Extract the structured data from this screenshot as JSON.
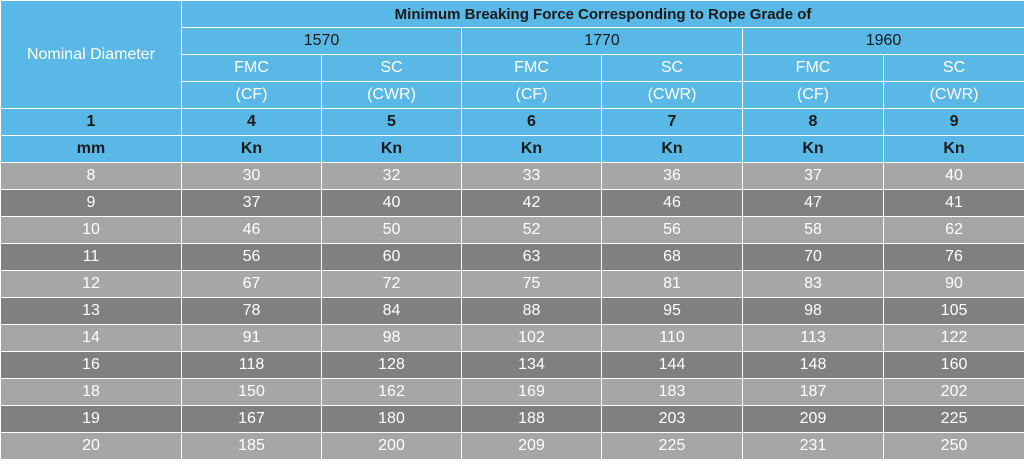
{
  "table": {
    "title": "Minimum Breaking Force Corresponding to Rope Grade of",
    "first_col_header": "Nominal Diameter",
    "grades": [
      "1570",
      "1770",
      "1960"
    ],
    "types": [
      "FMC",
      "SC",
      "FMC",
      "SC",
      "FMC",
      "SC"
    ],
    "type_codes": [
      "(CF)",
      "(CWR)",
      "(CF)",
      "(CWR)",
      "(CF)",
      "(CWR)"
    ],
    "column_numbers": [
      "1",
      "4",
      "5",
      "6",
      "7",
      "8",
      "9"
    ],
    "units": [
      "mm",
      "Kn",
      "Kn",
      "Kn",
      "Kn",
      "Kn",
      "Kn"
    ],
    "rows": [
      [
        "8",
        "30",
        "32",
        "33",
        "36",
        "37",
        "40"
      ],
      [
        "9",
        "37",
        "40",
        "42",
        "46",
        "47",
        "41"
      ],
      [
        "10",
        "46",
        "50",
        "52",
        "56",
        "58",
        "62"
      ],
      [
        "11",
        "56",
        "60",
        "63",
        "68",
        "70",
        "76"
      ],
      [
        "12",
        "67",
        "72",
        "75",
        "81",
        "83",
        "90"
      ],
      [
        "13",
        "78",
        "84",
        "88",
        "95",
        "98",
        "105"
      ],
      [
        "14",
        "91",
        "98",
        "102",
        "110",
        "113",
        "122"
      ],
      [
        "16",
        "118",
        "128",
        "134",
        "144",
        "148",
        "160"
      ],
      [
        "18",
        "150",
        "162",
        "169",
        "183",
        "187",
        "202"
      ],
      [
        "19",
        "167",
        "180",
        "188",
        "203",
        "209",
        "225"
      ],
      [
        "20",
        "185",
        "200",
        "209",
        "225",
        "231",
        "250"
      ]
    ],
    "colors": {
      "header_blue": "#5ab8e6",
      "row_light": "#a6a6a6",
      "row_dark": "#808080",
      "text_white": "#ffffff"
    }
  }
}
